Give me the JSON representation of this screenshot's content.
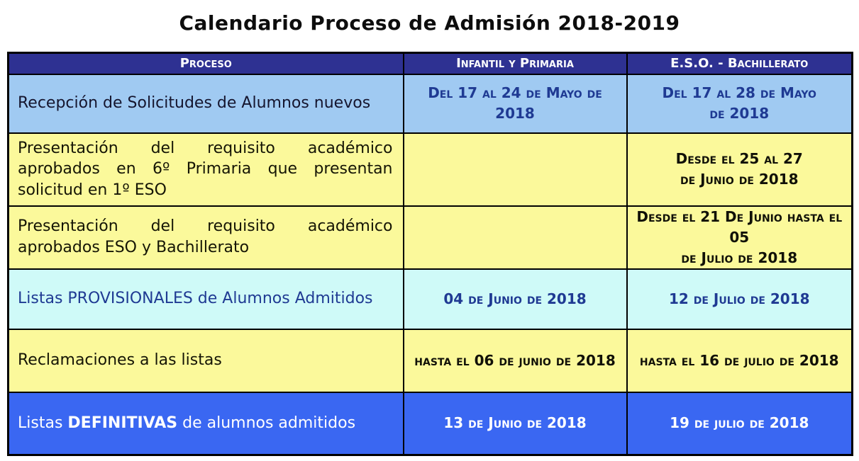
{
  "title": "Calendario Proceso de Admisión 2018-2019",
  "colors": {
    "header_bg": "#2E3192",
    "header_text": "#FFFFFF",
    "row_light_blue": "#A0CAF2",
    "row_yellow": "#FBF99B",
    "row_cyan": "#CFFAF8",
    "row_royal_blue": "#3A67F2",
    "date_text_blue": "#1F3A93",
    "border_black": "#000000"
  },
  "table": {
    "headers": [
      "Proceso",
      "Infantil y Primaria",
      "E.S.O. - Bachillerato"
    ],
    "rows": [
      {
        "proceso": "Recepción de Solicitudes de Alumnos nuevos",
        "infantil": "Del 17 al 24 de Mayo de 2018",
        "eso": "Del 17 al 28 de Mayo\nde 2018"
      },
      {
        "proceso": "Presentación del requisito académico aprobados en 6º Primaria que presentan solicitud en 1º ESO",
        "infantil": "",
        "eso": "Desde el 25 al  27\nde Junio de 2018"
      },
      {
        "proceso": "Presentación del requisito académico aprobados ESO y Bachillerato",
        "infantil": "",
        "eso": "Desde el 21 De Junio hasta el 05\nde Julio de 2018"
      },
      {
        "proceso": "Listas PROVISIONALES de Alumnos Admitidos",
        "infantil": "04 de Junio de 2018",
        "eso": "12 de Julio de 2018"
      },
      {
        "proceso": "Reclamaciones a las listas",
        "infantil": "hasta el 06 de junio de 2018",
        "eso": "hasta el 16 de julio de 2018"
      },
      {
        "proceso_prefix": "Listas ",
        "proceso_bold": "DEFINITIVAS",
        "proceso_suffix": " de alumnos admitidos",
        "infantil": "13 de Junio de 2018",
        "eso": "19 de julio de 2018"
      }
    ]
  }
}
